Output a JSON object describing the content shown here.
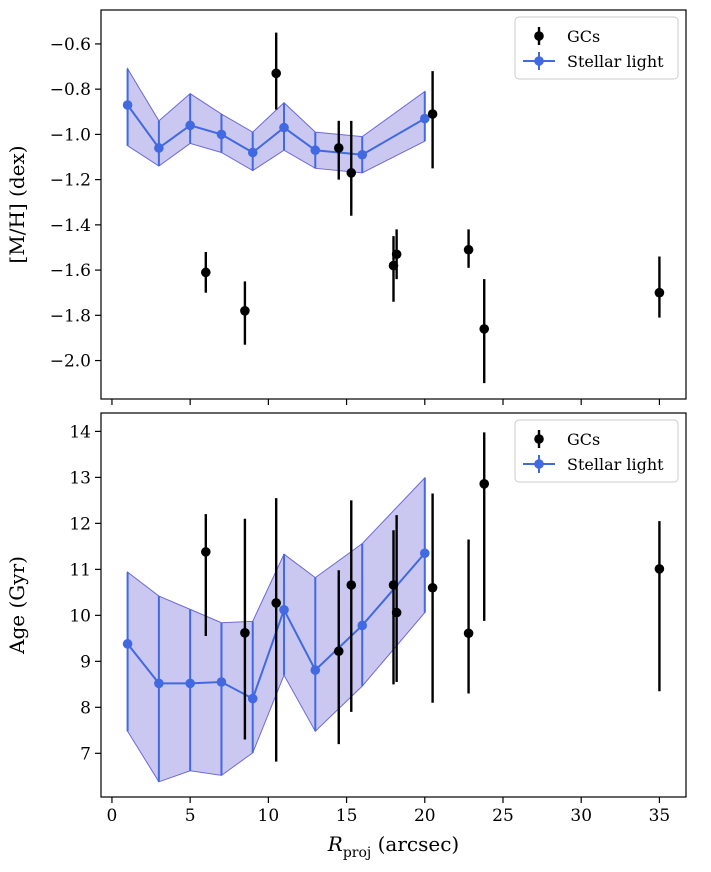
{
  "colors": {
    "gc": "#000000",
    "stellar": "#4169e1",
    "band_fill": "#8a84dd",
    "band_edge": "#6f68d6"
  },
  "chart_data": [
    {
      "type": "scatter",
      "ylabel": "[M/H] (dex)",
      "xlim": [
        -0.7,
        36.7
      ],
      "ylim": [
        -2.17,
        -0.45
      ],
      "x_ticks": [
        0,
        5,
        10,
        15,
        20,
        25,
        30,
        35
      ],
      "y_ticks": [
        -2.0,
        -1.8,
        -1.6,
        -1.4,
        -1.2,
        -1.0,
        -0.8,
        -0.6
      ],
      "y_tick_labels": [
        "−2.0",
        "−1.8",
        "−1.6",
        "−1.4",
        "−1.2",
        "−1.0",
        "−0.8",
        "−0.6"
      ],
      "legend": {
        "placement": "top-right",
        "entries": [
          "GCs",
          "Stellar light"
        ]
      },
      "series": [
        {
          "name": "GCs",
          "kind": "errorbar-points",
          "points": [
            {
              "x": 6.0,
              "y": -1.61,
              "lo": -1.7,
              "hi": -1.52
            },
            {
              "x": 8.5,
              "y": -1.78,
              "lo": -1.93,
              "hi": -1.65
            },
            {
              "x": 10.5,
              "y": -0.73,
              "lo": -0.89,
              "hi": -0.55
            },
            {
              "x": 14.5,
              "y": -1.06,
              "lo": -1.2,
              "hi": -0.94
            },
            {
              "x": 15.3,
              "y": -1.17,
              "lo": -1.36,
              "hi": -0.94
            },
            {
              "x": 18.0,
              "y": -1.58,
              "lo": -1.74,
              "hi": -1.45
            },
            {
              "x": 18.2,
              "y": -1.53,
              "lo": -1.64,
              "hi": -1.42
            },
            {
              "x": 20.5,
              "y": -0.91,
              "lo": -1.15,
              "hi": -0.72
            },
            {
              "x": 22.8,
              "y": -1.51,
              "lo": -1.59,
              "hi": -1.42
            },
            {
              "x": 23.8,
              "y": -1.86,
              "lo": -2.1,
              "hi": -1.64
            },
            {
              "x": 35.0,
              "y": -1.7,
              "lo": -1.81,
              "hi": -1.54
            }
          ]
        },
        {
          "name": "Stellar light",
          "kind": "line-with-band",
          "points": [
            {
              "x": 1,
              "y": -0.87,
              "lo": -1.05,
              "hi": -0.71
            },
            {
              "x": 3,
              "y": -1.06,
              "lo": -1.14,
              "hi": -0.94
            },
            {
              "x": 5,
              "y": -0.96,
              "lo": -1.04,
              "hi": -0.82
            },
            {
              "x": 7,
              "y": -1.0,
              "lo": -1.08,
              "hi": -0.91
            },
            {
              "x": 9,
              "y": -1.08,
              "lo": -1.16,
              "hi": -0.99
            },
            {
              "x": 11,
              "y": -0.97,
              "lo": -1.07,
              "hi": -0.86
            },
            {
              "x": 13,
              "y": -1.07,
              "lo": -1.15,
              "hi": -0.99
            },
            {
              "x": 16,
              "y": -1.09,
              "lo": -1.17,
              "hi": -1.01
            },
            {
              "x": 20,
              "y": -0.93,
              "lo": -1.03,
              "hi": -0.81
            }
          ]
        }
      ]
    },
    {
      "type": "scatter",
      "xlabel_main": "R",
      "xlabel_sub": "proj",
      "xlabel_rest": " (arcsec)",
      "ylabel": "Age (Gyr)",
      "xlim": [
        -0.7,
        36.7
      ],
      "ylim": [
        6.05,
        14.4
      ],
      "x_ticks": [
        0,
        5,
        10,
        15,
        20,
        25,
        30,
        35
      ],
      "x_tick_labels": [
        "0",
        "5",
        "10",
        "15",
        "20",
        "25",
        "30",
        "35"
      ],
      "y_ticks": [
        7,
        8,
        9,
        10,
        11,
        12,
        13,
        14
      ],
      "y_tick_labels": [
        "7",
        "8",
        "9",
        "10",
        "11",
        "12",
        "13",
        "14"
      ],
      "legend": {
        "placement": "top-right",
        "entries": [
          "GCs",
          "Stellar light"
        ]
      },
      "series": [
        {
          "name": "GCs",
          "kind": "errorbar-points",
          "points": [
            {
              "x": 6.0,
              "y": 11.38,
              "lo": 9.55,
              "hi": 12.2
            },
            {
              "x": 8.5,
              "y": 9.62,
              "lo": 7.3,
              "hi": 12.1
            },
            {
              "x": 10.5,
              "y": 10.27,
              "lo": 6.82,
              "hi": 12.55
            },
            {
              "x": 14.5,
              "y": 9.22,
              "lo": 7.2,
              "hi": 10.98
            },
            {
              "x": 15.3,
              "y": 10.66,
              "lo": 7.9,
              "hi": 12.5
            },
            {
              "x": 18.0,
              "y": 10.66,
              "lo": 8.5,
              "hi": 11.85
            },
            {
              "x": 18.2,
              "y": 10.06,
              "lo": 8.55,
              "hi": 12.18
            },
            {
              "x": 20.5,
              "y": 10.6,
              "lo": 8.1,
              "hi": 12.65
            },
            {
              "x": 22.8,
              "y": 9.61,
              "lo": 8.3,
              "hi": 11.65
            },
            {
              "x": 23.8,
              "y": 12.86,
              "lo": 9.88,
              "hi": 13.98
            },
            {
              "x": 35.0,
              "y": 11.01,
              "lo": 8.35,
              "hi": 12.05
            }
          ]
        },
        {
          "name": "Stellar light",
          "kind": "line-with-band",
          "points": [
            {
              "x": 1,
              "y": 9.38,
              "lo": 7.48,
              "hi": 10.94
            },
            {
              "x": 3,
              "y": 8.52,
              "lo": 6.38,
              "hi": 10.42
            },
            {
              "x": 5,
              "y": 8.52,
              "lo": 6.62,
              "hi": 10.13
            },
            {
              "x": 7,
              "y": 8.55,
              "lo": 6.52,
              "hi": 9.84
            },
            {
              "x": 9,
              "y": 8.19,
              "lo": 7.01,
              "hi": 9.87
            },
            {
              "x": 11,
              "y": 10.12,
              "lo": 8.7,
              "hi": 11.33
            },
            {
              "x": 13,
              "y": 8.81,
              "lo": 7.48,
              "hi": 10.82
            },
            {
              "x": 16,
              "y": 9.78,
              "lo": 8.46,
              "hi": 11.56
            },
            {
              "x": 20,
              "y": 11.35,
              "lo": 10.06,
              "hi": 12.99
            }
          ]
        }
      ]
    }
  ]
}
